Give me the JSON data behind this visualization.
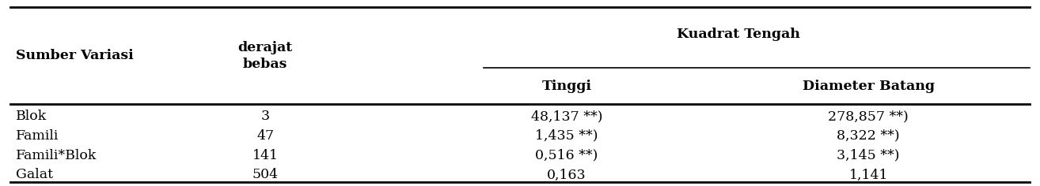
{
  "rows": [
    [
      "Blok",
      "3",
      "48,137 **)",
      "278,857 **)"
    ],
    [
      "Famili",
      "47",
      "1,435 **)",
      "8,322 **)"
    ],
    [
      "Famili*Blok",
      "141",
      "0,516 **)",
      "3,145 **)"
    ],
    [
      "Galat",
      "504",
      "0,163",
      "1,141"
    ]
  ],
  "background_color": "#ffffff",
  "font_size": 12.5,
  "header_font_size": 12.5,
  "fig_width": 13.14,
  "fig_height": 2.36,
  "dpi": 100
}
